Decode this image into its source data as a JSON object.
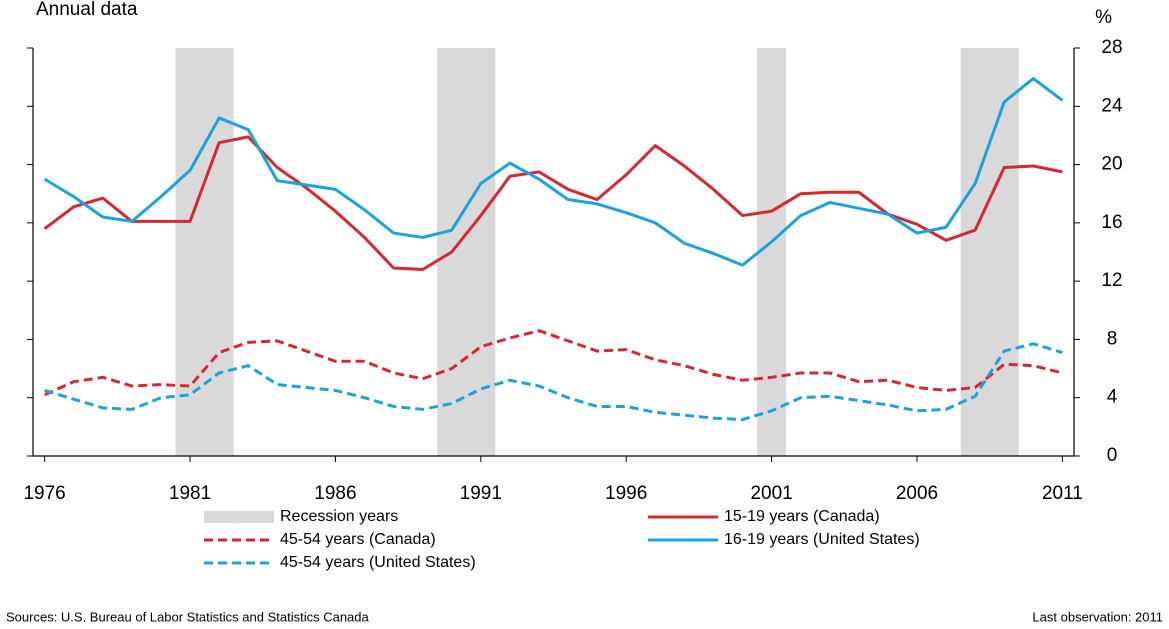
{
  "chart_data": {
    "type": "line",
    "subtitle": "Annual data",
    "y_unit": "%",
    "source": "Sources: U.S. Bureau of Labor Statistics and Statistics Canada",
    "note": "Last observation: 2011",
    "x": [
      1976,
      1977,
      1978,
      1979,
      1980,
      1981,
      1982,
      1983,
      1984,
      1985,
      1986,
      1987,
      1988,
      1989,
      1990,
      1991,
      1992,
      1993,
      1994,
      1995,
      1996,
      1997,
      1998,
      1999,
      2000,
      2001,
      2002,
      2003,
      2004,
      2005,
      2006,
      2007,
      2008,
      2009,
      2010,
      2011
    ],
    "xlim": [
      1975.6,
      2011.4
    ],
    "xticks": [
      1976,
      1981,
      1986,
      1991,
      1996,
      2001,
      2006,
      2011
    ],
    "ylim": [
      0,
      28
    ],
    "yticks": [
      0,
      4,
      8,
      12,
      16,
      20,
      24,
      28
    ],
    "recession_name": "Recession years",
    "recession_color": "#d9d9d9",
    "recessions": [
      [
        1980.5,
        1982.5
      ],
      [
        1989.5,
        1991.5
      ],
      [
        2000.5,
        2001.5
      ],
      [
        2007.5,
        2009.5
      ]
    ],
    "series": [
      {
        "name": "15-19 years (Canada)",
        "color": "#d7282f",
        "dash": false,
        "values": [
          15.6,
          17.1,
          17.7,
          16.1,
          16.1,
          16.1,
          21.5,
          21.9,
          19.8,
          18.4,
          16.8,
          15.0,
          12.9,
          12.8,
          14.0,
          16.5,
          19.2,
          19.5,
          18.3,
          17.6,
          19.3,
          21.3,
          19.9,
          18.3,
          16.5,
          16.8,
          18.0,
          18.1,
          18.1,
          16.6,
          15.9,
          14.8,
          15.5,
          19.8,
          19.9,
          19.5
        ]
      },
      {
        "name": "45-54 years (Canada)",
        "color": "#d7282f",
        "dash": true,
        "values": [
          4.2,
          5.1,
          5.4,
          4.8,
          4.9,
          4.8,
          7.1,
          7.8,
          7.9,
          7.2,
          6.5,
          6.5,
          5.7,
          5.3,
          6.0,
          7.5,
          8.1,
          8.6,
          7.9,
          7.2,
          7.3,
          6.6,
          6.2,
          5.6,
          5.2,
          5.4,
          5.7,
          5.7,
          5.1,
          5.2,
          4.7,
          4.5,
          4.7,
          6.3,
          6.2,
          5.7
        ]
      },
      {
        "name": "16-19 years (United States)",
        "color": "#1aa3dc",
        "dash": false,
        "values": [
          19.0,
          17.8,
          16.4,
          16.1,
          17.8,
          19.6,
          23.2,
          22.4,
          18.9,
          18.6,
          18.3,
          16.9,
          15.3,
          15.0,
          15.5,
          18.7,
          20.1,
          19.0,
          17.6,
          17.3,
          16.7,
          16.0,
          14.6,
          13.9,
          13.1,
          14.7,
          16.5,
          17.4,
          17.0,
          16.6,
          15.3,
          15.7,
          18.7,
          24.3,
          25.9,
          24.4
        ]
      },
      {
        "name": "45-54 years (United States)",
        "color": "#1aa3dc",
        "dash": true,
        "values": [
          4.5,
          3.9,
          3.3,
          3.2,
          4.0,
          4.2,
          5.7,
          6.2,
          4.9,
          4.7,
          4.5,
          4.0,
          3.4,
          3.2,
          3.6,
          4.6,
          5.2,
          4.8,
          4.0,
          3.4,
          3.4,
          3.0,
          2.8,
          2.6,
          2.5,
          3.1,
          4.0,
          4.1,
          3.8,
          3.5,
          3.1,
          3.2,
          4.1,
          7.2,
          7.7,
          7.1
        ]
      }
    ]
  }
}
